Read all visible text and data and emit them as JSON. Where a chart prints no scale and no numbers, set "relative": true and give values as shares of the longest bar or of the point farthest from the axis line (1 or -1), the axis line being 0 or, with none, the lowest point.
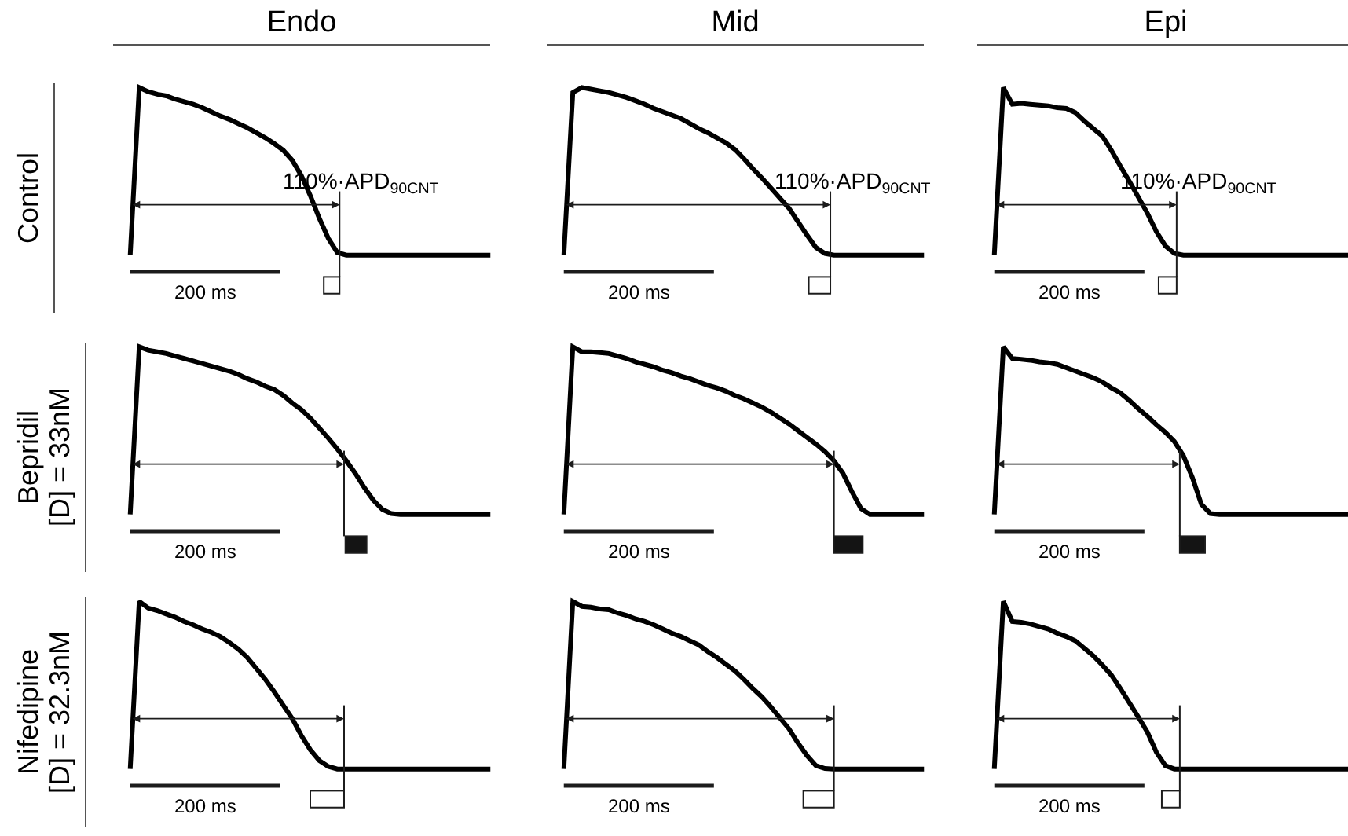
{
  "chart_data": [
    {
      "type": "line",
      "title": "Endo",
      "ylabel": "Control",
      "relative": true,
      "categories": [
        null,
        null,
        null,
        null,
        null,
        null,
        null,
        null,
        null,
        null,
        null,
        null,
        null,
        null,
        null,
        null,
        null,
        null,
        null,
        null,
        null,
        null,
        null,
        null,
        null,
        null,
        null,
        null,
        null,
        null,
        null,
        null,
        null,
        null,
        null,
        null,
        null,
        null,
        null,
        null,
        null
      ],
      "series": [
        {
          "color": "#000000",
          "values": [
            0,
            1,
            0.975,
            0.96,
            0.95,
            0.93,
            0.915,
            0.9,
            0.88,
            0.855,
            0.83,
            0.81,
            0.785,
            0.76,
            0.73,
            0.7,
            0.665,
            0.625,
            0.565,
            0.475,
            0.355,
            0.22,
            0.1,
            0.015,
            0,
            0,
            0,
            0,
            0,
            0,
            0,
            0,
            0,
            0,
            0,
            0,
            0,
            0,
            0,
            0,
            0
          ]
        }
      ],
      "annotations": [
        "200 ms",
        "110%·APD$_{90CNT}$"
      ]
    },
    {
      "type": "line",
      "title": "Mid",
      "relative": true,
      "categories": [
        null,
        null,
        null,
        null,
        null,
        null,
        null,
        null,
        null,
        null,
        null,
        null,
        null,
        null,
        null,
        null,
        null,
        null,
        null,
        null,
        null,
        null,
        null,
        null,
        null,
        null,
        null,
        null,
        null,
        null,
        null,
        null,
        null,
        null,
        null,
        null,
        null,
        null,
        null,
        null,
        null
      ],
      "series": [
        {
          "color": "#000000",
          "values": [
            0,
            0.97,
            1,
            0.99,
            0.98,
            0.97,
            0.955,
            0.94,
            0.92,
            0.9,
            0.875,
            0.855,
            0.835,
            0.815,
            0.785,
            0.755,
            0.73,
            0.7,
            0.67,
            0.63,
            0.575,
            0.515,
            0.46,
            0.4,
            0.34,
            0.28,
            0.2,
            0.12,
            0.045,
            0.01,
            0,
            0,
            0,
            0,
            0,
            0,
            0,
            0,
            0,
            0,
            0
          ]
        }
      ],
      "annotations": [
        "200 ms",
        "110%·APD$_{90CNT}$"
      ]
    },
    {
      "type": "line",
      "title": "Epi",
      "relative": true,
      "categories": [
        null,
        null,
        null,
        null,
        null,
        null,
        null,
        null,
        null,
        null,
        null,
        null,
        null,
        null,
        null,
        null,
        null,
        null,
        null,
        null,
        null,
        null,
        null,
        null,
        null,
        null,
        null,
        null,
        null,
        null,
        null,
        null,
        null,
        null,
        null,
        null,
        null,
        null,
        null,
        null,
        null
      ],
      "series": [
        {
          "color": "#000000",
          "values": [
            0,
            1,
            0.9,
            0.905,
            0.9,
            0.895,
            0.89,
            0.88,
            0.875,
            0.85,
            0.8,
            0.755,
            0.71,
            0.625,
            0.53,
            0.44,
            0.345,
            0.25,
            0.14,
            0.055,
            0.01,
            0,
            0,
            0,
            0,
            0,
            0,
            0,
            0,
            0,
            0,
            0,
            0,
            0,
            0,
            0,
            0,
            0,
            0,
            0,
            0
          ]
        }
      ],
      "annotations": [
        "200 ms",
        "110%·APD$_{90CNT}$"
      ]
    },
    {
      "type": "line",
      "ylabel": "Bepridil\n[D] = 33nM",
      "relative": true,
      "categories": [
        null,
        null,
        null,
        null,
        null,
        null,
        null,
        null,
        null,
        null,
        null,
        null,
        null,
        null,
        null,
        null,
        null,
        null,
        null,
        null,
        null,
        null,
        null,
        null,
        null,
        null,
        null,
        null,
        null,
        null,
        null,
        null,
        null,
        null,
        null,
        null,
        null,
        null,
        null,
        null,
        null
      ],
      "series": [
        {
          "color": "#000000",
          "values": [
            0,
            1,
            0.98,
            0.97,
            0.96,
            0.945,
            0.93,
            0.915,
            0.9,
            0.885,
            0.87,
            0.855,
            0.835,
            0.81,
            0.79,
            0.765,
            0.745,
            0.71,
            0.665,
            0.625,
            0.575,
            0.515,
            0.455,
            0.39,
            0.32,
            0.245,
            0.16,
            0.085,
            0.03,
            0.005,
            0,
            0,
            0,
            0,
            0,
            0,
            0,
            0,
            0,
            0,
            0
          ]
        }
      ],
      "annotations": [
        "200 ms"
      ]
    },
    {
      "type": "line",
      "relative": true,
      "categories": [
        null,
        null,
        null,
        null,
        null,
        null,
        null,
        null,
        null,
        null,
        null,
        null,
        null,
        null,
        null,
        null,
        null,
        null,
        null,
        null,
        null,
        null,
        null,
        null,
        null,
        null,
        null,
        null,
        null,
        null,
        null,
        null,
        null,
        null,
        null,
        null,
        null,
        null,
        null,
        null,
        null
      ],
      "series": [
        {
          "color": "#000000",
          "values": [
            0,
            1,
            0.97,
            0.97,
            0.965,
            0.96,
            0.945,
            0.93,
            0.91,
            0.895,
            0.88,
            0.86,
            0.845,
            0.825,
            0.81,
            0.79,
            0.77,
            0.755,
            0.735,
            0.71,
            0.69,
            0.665,
            0.64,
            0.61,
            0.575,
            0.54,
            0.5,
            0.46,
            0.42,
            0.375,
            0.32,
            0.245,
            0.135,
            0.035,
            0,
            0,
            0,
            0,
            0,
            0,
            0
          ]
        }
      ],
      "annotations": [
        "200 ms"
      ]
    },
    {
      "type": "line",
      "relative": true,
      "categories": [
        null,
        null,
        null,
        null,
        null,
        null,
        null,
        null,
        null,
        null,
        null,
        null,
        null,
        null,
        null,
        null,
        null,
        null,
        null,
        null,
        null,
        null,
        null,
        null,
        null,
        null,
        null,
        null,
        null,
        null,
        null,
        null,
        null,
        null,
        null,
        null,
        null,
        null,
        null,
        null,
        null
      ],
      "series": [
        {
          "color": "#000000",
          "values": [
            0,
            1,
            0.93,
            0.925,
            0.92,
            0.91,
            0.905,
            0.895,
            0.875,
            0.855,
            0.835,
            0.815,
            0.79,
            0.755,
            0.725,
            0.68,
            0.63,
            0.585,
            0.535,
            0.49,
            0.435,
            0.35,
            0.22,
            0.06,
            0.005,
            0,
            0,
            0,
            0,
            0,
            0,
            0,
            0,
            0,
            0,
            0,
            0,
            0,
            0,
            0,
            0
          ]
        }
      ],
      "annotations": [
        "200 ms"
      ]
    },
    {
      "type": "line",
      "ylabel": "Nifedipine\n[D] = 32.3nM",
      "relative": true,
      "categories": [
        null,
        null,
        null,
        null,
        null,
        null,
        null,
        null,
        null,
        null,
        null,
        null,
        null,
        null,
        null,
        null,
        null,
        null,
        null,
        null,
        null,
        null,
        null,
        null,
        null,
        null,
        null,
        null,
        null,
        null,
        null,
        null,
        null,
        null,
        null,
        null,
        null,
        null,
        null,
        null,
        null
      ],
      "series": [
        {
          "color": "#000000",
          "values": [
            0,
            1,
            0.96,
            0.945,
            0.925,
            0.905,
            0.88,
            0.86,
            0.835,
            0.815,
            0.79,
            0.755,
            0.715,
            0.665,
            0.6,
            0.535,
            0.46,
            0.38,
            0.3,
            0.2,
            0.115,
            0.05,
            0.015,
            0,
            0,
            0,
            0,
            0,
            0,
            0,
            0,
            0,
            0,
            0,
            0,
            0,
            0,
            0,
            0,
            0,
            0
          ]
        }
      ],
      "annotations": [
        "200 ms"
      ]
    },
    {
      "type": "line",
      "relative": true,
      "categories": [
        null,
        null,
        null,
        null,
        null,
        null,
        null,
        null,
        null,
        null,
        null,
        null,
        null,
        null,
        null,
        null,
        null,
        null,
        null,
        null,
        null,
        null,
        null,
        null,
        null,
        null,
        null,
        null,
        null,
        null,
        null,
        null,
        null,
        null,
        null,
        null,
        null,
        null,
        null,
        null,
        null
      ],
      "series": [
        {
          "color": "#000000",
          "values": [
            0,
            1,
            0.97,
            0.965,
            0.955,
            0.95,
            0.93,
            0.915,
            0.895,
            0.88,
            0.86,
            0.835,
            0.81,
            0.79,
            0.765,
            0.74,
            0.7,
            0.665,
            0.625,
            0.585,
            0.535,
            0.48,
            0.43,
            0.37,
            0.305,
            0.24,
            0.155,
            0.08,
            0.02,
            0.003,
            0,
            0,
            0,
            0,
            0,
            0,
            0,
            0,
            0,
            0,
            0
          ]
        }
      ],
      "annotations": [
        "200 ms"
      ]
    },
    {
      "type": "line",
      "relative": true,
      "categories": [
        null,
        null,
        null,
        null,
        null,
        null,
        null,
        null,
        null,
        null,
        null,
        null,
        null,
        null,
        null,
        null,
        null,
        null,
        null,
        null,
        null,
        null,
        null,
        null,
        null,
        null,
        null,
        null,
        null,
        null,
        null,
        null,
        null,
        null,
        null,
        null,
        null,
        null,
        null,
        null,
        null
      ],
      "series": [
        {
          "color": "#000000",
          "values": [
            0,
            1,
            0.88,
            0.875,
            0.865,
            0.85,
            0.835,
            0.81,
            0.79,
            0.765,
            0.72,
            0.675,
            0.62,
            0.56,
            0.48,
            0.395,
            0.31,
            0.22,
            0.1,
            0.02,
            0,
            0,
            0,
            0,
            0,
            0,
            0,
            0,
            0,
            0,
            0,
            0,
            0,
            0,
            0,
            0,
            0,
            0,
            0,
            0,
            0
          ]
        }
      ],
      "annotations": [
        "200 ms"
      ]
    }
  ]
}
